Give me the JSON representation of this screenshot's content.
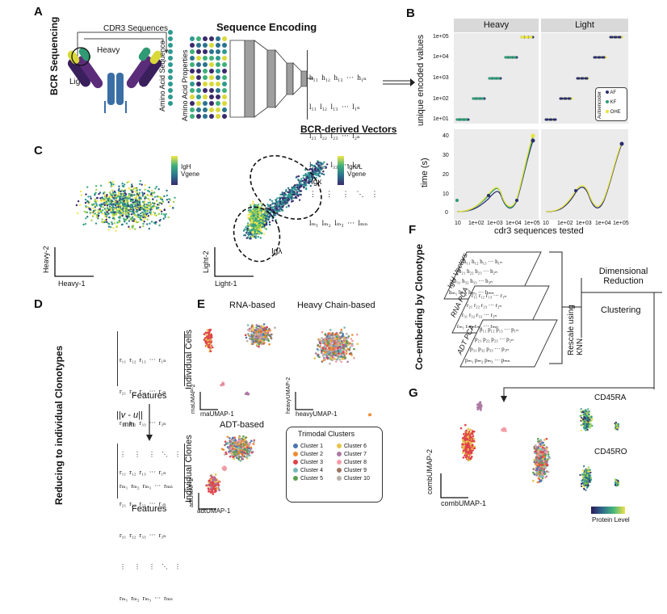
{
  "panels": {
    "a": {
      "letter": "A",
      "side_label": "BCR Sequencing",
      "cdr3_label": "CDR3 Sequences",
      "heavy_label": "Heavy",
      "light_label": "Light",
      "title": "Sequence Encoding",
      "aa_sequence_label": "Amino Acid Sequence",
      "aa_properties_label": "Amino Acid Properties",
      "vectors_label": "BCR-derived Vectors",
      "matrix_rows": [
        "h₁₁  h₁₂  h₁₃  ···  h₁ₙ",
        "l₁₁  l₁₂  l₁₃  ···  l₁ₙ",
        "l₂₁  l₂₂  l₂₃  ···  l₂ₙ",
        "l₃₁  l₃₂  l₃₃  ···  l₃ₙ",
        "⋮     ⋮     ⋮    ⋱    ⋮",
        "lₘ₁  lₘ₂  lₘ₃  ···  lₘₙ"
      ]
    },
    "b": {
      "letter": "B",
      "facet_heavy": "Heavy",
      "facet_light": "Light",
      "ylabel_top": "unique encoded values",
      "ylabel_bottom": "time (s)",
      "xlabel": "cdr3 sequences tested",
      "y_ticks_top": [
        "1e+05",
        "1e+04",
        "1e+03",
        "1e+02",
        "1e+01"
      ],
      "y_ticks_bottom": [
        "40",
        "30",
        "20",
        "10",
        "0"
      ],
      "x_ticks": [
        "10",
        "1e+02",
        "1e+03",
        "1e+04",
        "1e+05"
      ],
      "legend_title": "Autoencoder",
      "legend": [
        {
          "label": "AF",
          "color": "#2a2f6e"
        },
        {
          "label": "KF",
          "color": "#2f9a73"
        },
        {
          "label": "OHE",
          "color": "#e8e43a"
        }
      ]
    },
    "c": {
      "letter": "C",
      "left_colorbar_label": "IgH Vgene",
      "right_colorbar_label": "IgK/L Vgene",
      "left_x_axis": "Heavy-1",
      "left_y_axis": "Heavy-2",
      "right_x_axis": "Light-1",
      "right_y_axis": "Light-2",
      "kappa_label": "Igκ",
      "lambda_label": "Igλ"
    },
    "d": {
      "letter": "D",
      "side_label": "Reducing to individual Clonotypes",
      "features_label": "Features",
      "cells_label": "Individual Cells",
      "clones_label": "Individual Clones",
      "formula": "||v - u||",
      "formula_sub": "min",
      "matrix_rows": [
        "r₁₁  r₁₂  r₁₃  ···  r₁ₙ",
        "r₂₁  r₂₂  r₂₃  ···  r₂ₙ",
        "r₃₁  r₃₂  r₃₃  ···  r₃ₙ",
        "⋮     ⋮     ⋮    ⋱    ⋮",
        "rₘ₁  rₘ₂  rₘ₃  ···  rₘₙ"
      ]
    },
    "e": {
      "letter": "E",
      "rna_title": "RNA-based",
      "heavy_title": "Heavy Chain-based",
      "adt_title": "ADT-based",
      "rna_x": "rnaUMAP-1",
      "rna_y": "rnaUMAP-2",
      "heavy_x": "heavyUMAP-1",
      "heavy_y": "heavyUMAP-2",
      "adt_x": "adtUMAP-1",
      "adt_y": "adtUMAP-2",
      "legend_title": "Trimodal Clusters",
      "clusters": [
        {
          "label": "Cluster 1",
          "color": "#4a76b0"
        },
        {
          "label": "Cluster 2",
          "color": "#ef8a30"
        },
        {
          "label": "Cluster 3",
          "color": "#e0424b"
        },
        {
          "label": "Cluster 4",
          "color": "#76b8b4"
        },
        {
          "label": "Cluster 5",
          "color": "#5b9e4d"
        },
        {
          "label": "Cluster 6",
          "color": "#e5c34a"
        },
        {
          "label": "Cluster 7",
          "color": "#ad7aa4"
        },
        {
          "label": "Cluster 8",
          "color": "#f29ca6"
        },
        {
          "label": "Cluster 9",
          "color": "#9c7560"
        },
        {
          "label": "Cluster 10",
          "color": "#bab0ab"
        }
      ]
    },
    "f": {
      "letter": "F",
      "side_label": "Co-embeding by Clonotype",
      "stack_labels": [
        "IgH Vectors",
        "RNA PCA",
        "ADT PCA"
      ],
      "rescale_label": "Rescale using KNN",
      "dimred_label": "Dimensional Reduction",
      "clustering_label": "Clustering"
    },
    "g": {
      "letter": "G",
      "x_axis": "combUMAP-1",
      "y_axis": "combUMAP-2",
      "cd45ra": "CD45RA",
      "cd45ro": "CD45RO",
      "protein_label": "Protein Level"
    }
  }
}
